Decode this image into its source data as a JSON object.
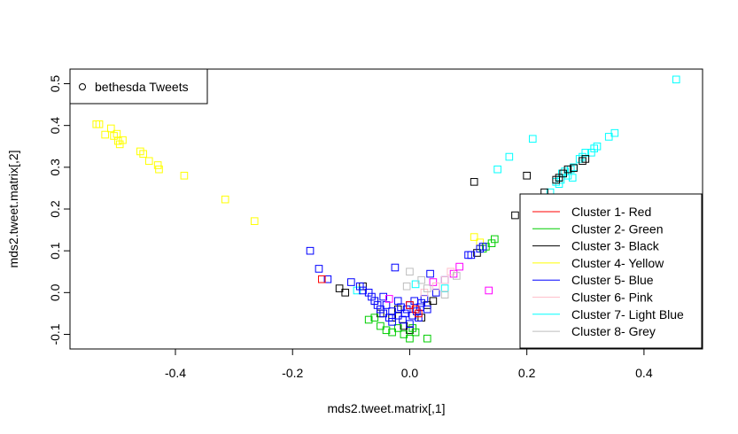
{
  "chart_data": {
    "type": "scatter",
    "title": "",
    "xlabel": "mds2.tweet.matrix[,1]",
    "ylabel": "mds2.tweet.matrix[,2]",
    "xlim": [
      -0.58,
      0.5
    ],
    "ylim": [
      -0.135,
      0.535
    ],
    "x_ticks": [
      -0.4,
      -0.2,
      0.0,
      0.2,
      0.4
    ],
    "x_tick_labels": [
      "-0.4",
      "-0.2",
      "0.0",
      "0.2",
      "0.4"
    ],
    "y_ticks": [
      -0.1,
      0.0,
      0.1,
      0.2,
      0.3,
      0.4,
      0.5
    ],
    "y_tick_labels": [
      "-0.1",
      "0.0",
      "0.1",
      "0.2",
      "0.3",
      "0.4",
      "0.5"
    ],
    "grid": false,
    "marker": "open-square",
    "legend_top_left": {
      "position": "top-left",
      "entries": [
        {
          "label": "bethesda Tweets",
          "symbol": "open-circle",
          "color": "#000000"
        }
      ]
    },
    "legend_bottom_right": {
      "position": "bottom-right",
      "entries": [
        {
          "label": "Cluster 1- Red",
          "color": "#FF0000"
        },
        {
          "label": "Cluster 2- Green",
          "color": "#00CD00"
        },
        {
          "label": "Cluster 3- Black",
          "color": "#000000"
        },
        {
          "label": "Cluster 4- Yellow",
          "color": "#FFFF00"
        },
        {
          "label": "Cluster 5- Blue",
          "color": "#0000FF"
        },
        {
          "label": "Cluster 6- Pink",
          "color": "#FFC0CB"
        },
        {
          "label": "Cluster 7- Light Blue",
          "color": "#00FFFF"
        },
        {
          "label": "Cluster 8- Grey",
          "color": "#BEBEBE"
        }
      ]
    },
    "series": [
      {
        "color": "#FFFF00",
        "points": [
          [
            -0.535,
            0.403
          ],
          [
            -0.53,
            0.403
          ],
          [
            -0.52,
            0.378
          ],
          [
            -0.51,
            0.393
          ],
          [
            -0.505,
            0.375
          ],
          [
            -0.5,
            0.38
          ],
          [
            -0.498,
            0.363
          ],
          [
            -0.495,
            0.355
          ],
          [
            -0.49,
            0.365
          ],
          [
            -0.46,
            0.338
          ],
          [
            -0.455,
            0.332
          ],
          [
            -0.445,
            0.315
          ],
          [
            -0.43,
            0.305
          ],
          [
            -0.428,
            0.295
          ],
          [
            -0.385,
            0.28
          ],
          [
            -0.315,
            0.223
          ],
          [
            -0.265,
            0.171
          ],
          [
            0.11,
            0.133
          ],
          [
            0.12,
            0.12
          ]
        ]
      },
      {
        "color": "#00FFFF",
        "points": [
          [
            0.455,
            0.51
          ],
          [
            0.35,
            0.382
          ],
          [
            0.34,
            0.373
          ],
          [
            0.32,
            0.35
          ],
          [
            0.315,
            0.345
          ],
          [
            0.31,
            0.335
          ],
          [
            0.3,
            0.335
          ],
          [
            0.295,
            0.325
          ],
          [
            0.29,
            0.32
          ],
          [
            0.28,
            0.3
          ],
          [
            0.275,
            0.295
          ],
          [
            0.27,
            0.28
          ],
          [
            0.265,
            0.29
          ],
          [
            0.26,
            0.285
          ],
          [
            0.258,
            0.27
          ],
          [
            0.255,
            0.26
          ],
          [
            0.25,
            0.265
          ],
          [
            0.24,
            0.24
          ],
          [
            0.21,
            0.368
          ],
          [
            0.17,
            0.325
          ],
          [
            0.15,
            0.295
          ],
          [
            0.278,
            0.275
          ],
          [
            -0.09,
            0.005
          ],
          [
            0.01,
            0.02
          ],
          [
            0.06,
            0.01
          ]
        ]
      },
      {
        "color": "#000000",
        "points": [
          [
            0.3,
            0.32
          ],
          [
            0.295,
            0.315
          ],
          [
            0.28,
            0.298
          ],
          [
            0.27,
            0.295
          ],
          [
            0.262,
            0.285
          ],
          [
            0.255,
            0.275
          ],
          [
            0.25,
            0.27
          ],
          [
            0.2,
            0.28
          ],
          [
            0.11,
            0.265
          ],
          [
            0.23,
            0.24
          ],
          [
            0.18,
            0.185
          ],
          [
            0.115,
            0.095
          ],
          [
            -0.12,
            0.01
          ],
          [
            -0.11,
            0.0
          ],
          [
            -0.08,
            0.015
          ],
          [
            -0.06,
            -0.02
          ],
          [
            -0.05,
            -0.05
          ],
          [
            -0.03,
            -0.06
          ],
          [
            -0.01,
            -0.08
          ],
          [
            0.0,
            -0.09
          ],
          [
            0.02,
            -0.06
          ],
          [
            0.04,
            -0.02
          ],
          [
            -0.02,
            -0.04
          ],
          [
            0.03,
            -0.03
          ]
        ]
      },
      {
        "color": "#00CD00",
        "points": [
          [
            0.145,
            0.128
          ],
          [
            0.14,
            0.118
          ],
          [
            0.13,
            0.11
          ],
          [
            0.125,
            0.105
          ],
          [
            -0.07,
            -0.065
          ],
          [
            -0.06,
            -0.06
          ],
          [
            -0.05,
            -0.08
          ],
          [
            -0.04,
            -0.09
          ],
          [
            -0.03,
            -0.095
          ],
          [
            -0.01,
            -0.1
          ],
          [
            0.0,
            -0.11
          ],
          [
            0.01,
            -0.095
          ],
          [
            0.03,
            -0.11
          ],
          [
            -0.02,
            -0.085
          ],
          [
            0.005,
            -0.085
          ]
        ]
      },
      {
        "color": "#0000FF",
        "points": [
          [
            -0.17,
            0.1
          ],
          [
            -0.155,
            0.057
          ],
          [
            -0.14,
            0.032
          ],
          [
            -0.1,
            0.025
          ],
          [
            -0.085,
            0.015
          ],
          [
            -0.08,
            0.005
          ],
          [
            -0.07,
            0.0
          ],
          [
            -0.065,
            -0.01
          ],
          [
            -0.06,
            -0.02
          ],
          [
            -0.055,
            -0.03
          ],
          [
            -0.05,
            -0.04
          ],
          [
            -0.045,
            -0.05
          ],
          [
            -0.04,
            -0.03
          ],
          [
            -0.035,
            -0.06
          ],
          [
            -0.03,
            -0.045
          ],
          [
            -0.025,
            0.06
          ],
          [
            -0.02,
            -0.02
          ],
          [
            -0.015,
            -0.035
          ],
          [
            -0.012,
            -0.065
          ],
          [
            -0.008,
            -0.05
          ],
          [
            -0.005,
            -0.04
          ],
          [
            0.0,
            -0.03
          ],
          [
            0.005,
            -0.055
          ],
          [
            0.008,
            -0.02
          ],
          [
            0.012,
            -0.045
          ],
          [
            0.015,
            -0.06
          ],
          [
            0.018,
            -0.035
          ],
          [
            0.02,
            -0.025
          ],
          [
            0.025,
            -0.015
          ],
          [
            0.03,
            -0.04
          ],
          [
            0.035,
            0.045
          ],
          [
            0.045,
            0.0
          ],
          [
            0.06,
            0.03
          ],
          [
            0.1,
            0.09
          ],
          [
            0.105,
            0.09
          ],
          [
            0.12,
            0.105
          ],
          [
            0.125,
            0.11
          ],
          [
            -0.03,
            -0.07
          ],
          [
            0.0,
            -0.075
          ],
          [
            -0.045,
            -0.01
          ],
          [
            -0.02,
            -0.055
          ]
        ]
      },
      {
        "color": "#FF0000",
        "points": [
          [
            -0.15,
            0.032
          ],
          [
            0.0,
            -0.03
          ],
          [
            0.01,
            -0.04
          ],
          [
            0.015,
            -0.05
          ]
        ]
      },
      {
        "color": "#FF00FF",
        "points": [
          [
            0.135,
            0.005
          ],
          [
            0.085,
            0.062
          ],
          [
            0.075,
            0.045
          ],
          [
            -0.035,
            -0.015
          ],
          [
            0.04,
            0.025
          ]
        ]
      },
      {
        "color": "#FFC0CB",
        "points": [
          [
            0.06,
            0.03
          ],
          [
            0.07,
            0.05
          ],
          [
            0.045,
            0.015
          ],
          [
            0.025,
            0.0
          ]
        ]
      },
      {
        "color": "#BEBEBE",
        "points": [
          [
            0.0,
            0.05
          ],
          [
            0.02,
            0.03
          ],
          [
            0.06,
            -0.005
          ],
          [
            0.08,
            0.04
          ],
          [
            -0.005,
            0.015
          ],
          [
            0.03,
            0.01
          ]
        ]
      }
    ]
  }
}
